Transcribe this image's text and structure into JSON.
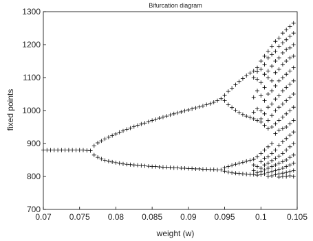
{
  "chart_data": {
    "type": "scatter",
    "title": "Bifurcation diagram",
    "xlabel": "weight (w)",
    "ylabel": "fixed points",
    "xlim": [
      0.07,
      0.105
    ],
    "ylim": [
      700,
      1300
    ],
    "x_ticks": [
      {
        "value": 0.07,
        "label": "0.07"
      },
      {
        "value": 0.075,
        "label": "0.075"
      },
      {
        "value": 0.08,
        "label": "0.08"
      },
      {
        "value": 0.085,
        "label": "0.085"
      },
      {
        "value": 0.09,
        "label": "0.09"
      },
      {
        "value": 0.095,
        "label": "0.095"
      },
      {
        "value": 0.1,
        "label": "0.1"
      },
      {
        "value": 0.105,
        "label": "0.105"
      }
    ],
    "y_ticks": [
      {
        "value": 700,
        "label": "700"
      },
      {
        "value": 800,
        "label": "800"
      },
      {
        "value": 900,
        "label": "900"
      },
      {
        "value": 1000,
        "label": "1000"
      },
      {
        "value": 1100,
        "label": "1100"
      },
      {
        "value": 1200,
        "label": "1200"
      },
      {
        "value": 1300,
        "label": "1300"
      }
    ],
    "marker": "plus",
    "grid": false,
    "colors": {
      "marker": "#000000",
      "axis": "#000000",
      "background": "#ffffff"
    },
    "points": [
      [
        0.07,
        880
      ],
      [
        0.0705,
        880
      ],
      [
        0.071,
        880
      ],
      [
        0.0715,
        880
      ],
      [
        0.072,
        880
      ],
      [
        0.0725,
        880
      ],
      [
        0.073,
        880
      ],
      [
        0.0735,
        880
      ],
      [
        0.074,
        880
      ],
      [
        0.0745,
        880
      ],
      [
        0.075,
        880
      ],
      [
        0.0755,
        880
      ],
      [
        0.076,
        879
      ],
      [
        0.0765,
        878
      ],
      [
        0.077,
        893
      ],
      [
        0.0775,
        902
      ],
      [
        0.078,
        908
      ],
      [
        0.0785,
        914
      ],
      [
        0.079,
        919
      ],
      [
        0.0795,
        924
      ],
      [
        0.08,
        929
      ],
      [
        0.0805,
        934
      ],
      [
        0.081,
        938
      ],
      [
        0.0815,
        943
      ],
      [
        0.082,
        947
      ],
      [
        0.0825,
        951
      ],
      [
        0.083,
        955
      ],
      [
        0.0835,
        959
      ],
      [
        0.084,
        962
      ],
      [
        0.0845,
        966
      ],
      [
        0.085,
        970
      ],
      [
        0.0855,
        973
      ],
      [
        0.086,
        977
      ],
      [
        0.0865,
        980
      ],
      [
        0.087,
        983
      ],
      [
        0.0875,
        987
      ],
      [
        0.088,
        990
      ],
      [
        0.0885,
        993
      ],
      [
        0.089,
        996
      ],
      [
        0.0895,
        999
      ],
      [
        0.09,
        1002
      ],
      [
        0.0905,
        1005
      ],
      [
        0.091,
        1008
      ],
      [
        0.0915,
        1011
      ],
      [
        0.092,
        1014
      ],
      [
        0.0925,
        1018
      ],
      [
        0.093,
        1021
      ],
      [
        0.0935,
        1025
      ],
      [
        0.094,
        1030
      ],
      [
        0.0945,
        1036
      ],
      [
        0.077,
        865
      ],
      [
        0.0775,
        858
      ],
      [
        0.078,
        853
      ],
      [
        0.0785,
        849
      ],
      [
        0.079,
        846
      ],
      [
        0.0795,
        844
      ],
      [
        0.08,
        842
      ],
      [
        0.0805,
        840
      ],
      [
        0.081,
        838
      ],
      [
        0.0815,
        837
      ],
      [
        0.082,
        836
      ],
      [
        0.0825,
        835
      ],
      [
        0.083,
        834
      ],
      [
        0.0835,
        833
      ],
      [
        0.084,
        832
      ],
      [
        0.0845,
        831
      ],
      [
        0.085,
        830
      ],
      [
        0.0855,
        830
      ],
      [
        0.086,
        829
      ],
      [
        0.0865,
        828
      ],
      [
        0.087,
        828
      ],
      [
        0.0875,
        827
      ],
      [
        0.088,
        826
      ],
      [
        0.0885,
        826
      ],
      [
        0.089,
        825
      ],
      [
        0.0895,
        825
      ],
      [
        0.09,
        824
      ],
      [
        0.0905,
        824
      ],
      [
        0.091,
        823
      ],
      [
        0.0915,
        823
      ],
      [
        0.092,
        822
      ],
      [
        0.0925,
        822
      ],
      [
        0.093,
        821
      ],
      [
        0.0935,
        821
      ],
      [
        0.094,
        820
      ],
      [
        0.0945,
        820
      ],
      [
        0.095,
        1046
      ],
      [
        0.0955,
        1058
      ],
      [
        0.096,
        1068
      ],
      [
        0.0965,
        1078
      ],
      [
        0.097,
        1088
      ],
      [
        0.0975,
        1097
      ],
      [
        0.098,
        1106
      ],
      [
        0.0985,
        1114
      ],
      [
        0.099,
        1120
      ],
      [
        0.0995,
        1118
      ],
      [
        0.095,
        1030
      ],
      [
        0.0955,
        1018
      ],
      [
        0.096,
        1009
      ],
      [
        0.0965,
        1001
      ],
      [
        0.097,
        994
      ],
      [
        0.0975,
        988
      ],
      [
        0.098,
        983
      ],
      [
        0.0985,
        979
      ],
      [
        0.095,
        826
      ],
      [
        0.0955,
        830
      ],
      [
        0.096,
        834
      ],
      [
        0.0965,
        837
      ],
      [
        0.097,
        840
      ],
      [
        0.0975,
        843
      ],
      [
        0.098,
        846
      ],
      [
        0.0985,
        849
      ],
      [
        0.099,
        852
      ],
      [
        0.095,
        816
      ],
      [
        0.0955,
        813
      ],
      [
        0.096,
        811
      ],
      [
        0.0965,
        810
      ],
      [
        0.097,
        809
      ],
      [
        0.0975,
        808
      ],
      [
        0.098,
        807
      ],
      [
        0.0985,
        806
      ],
      [
        0.099,
        1100
      ],
      [
        0.099,
        1040
      ],
      [
        0.099,
        995
      ],
      [
        0.099,
        975
      ],
      [
        0.099,
        835
      ],
      [
        0.099,
        818
      ],
      [
        0.099,
        806
      ],
      [
        0.0995,
        1130
      ],
      [
        0.0995,
        1095
      ],
      [
        0.0995,
        1060
      ],
      [
        0.0995,
        1005
      ],
      [
        0.0995,
        970
      ],
      [
        0.0995,
        860
      ],
      [
        0.0995,
        830
      ],
      [
        0.0995,
        812
      ],
      [
        0.0995,
        804
      ],
      [
        0.1,
        1150
      ],
      [
        0.1,
        1125
      ],
      [
        0.1,
        1085
      ],
      [
        0.1,
        1045
      ],
      [
        0.1,
        1000
      ],
      [
        0.1,
        975
      ],
      [
        0.1,
        965
      ],
      [
        0.1,
        870
      ],
      [
        0.1,
        845
      ],
      [
        0.1,
        825
      ],
      [
        0.1,
        815
      ],
      [
        0.1,
        805
      ],
      [
        0.1005,
        1165
      ],
      [
        0.1005,
        1140
      ],
      [
        0.1005,
        1110
      ],
      [
        0.1005,
        1070
      ],
      [
        0.1005,
        1030
      ],
      [
        0.1005,
        990
      ],
      [
        0.1005,
        955
      ],
      [
        0.1005,
        880
      ],
      [
        0.1005,
        855
      ],
      [
        0.1005,
        835
      ],
      [
        0.1005,
        820
      ],
      [
        0.1005,
        808
      ],
      [
        0.101,
        1180
      ],
      [
        0.101,
        1160
      ],
      [
        0.101,
        1120
      ],
      [
        0.101,
        1100
      ],
      [
        0.101,
        1050
      ],
      [
        0.101,
        1010
      ],
      [
        0.101,
        970
      ],
      [
        0.101,
        945
      ],
      [
        0.101,
        890
      ],
      [
        0.101,
        860
      ],
      [
        0.101,
        840
      ],
      [
        0.101,
        825
      ],
      [
        0.101,
        812
      ],
      [
        0.101,
        800
      ],
      [
        0.1015,
        1195
      ],
      [
        0.1015,
        1170
      ],
      [
        0.1015,
        1135
      ],
      [
        0.1015,
        1090
      ],
      [
        0.1015,
        1060
      ],
      [
        0.1015,
        1020
      ],
      [
        0.1015,
        985
      ],
      [
        0.1015,
        950
      ],
      [
        0.1015,
        900
      ],
      [
        0.1015,
        870
      ],
      [
        0.1015,
        848
      ],
      [
        0.1015,
        830
      ],
      [
        0.1015,
        815
      ],
      [
        0.1015,
        802
      ],
      [
        0.102,
        1210
      ],
      [
        0.102,
        1180
      ],
      [
        0.102,
        1150
      ],
      [
        0.102,
        1115
      ],
      [
        0.102,
        1075
      ],
      [
        0.102,
        1035
      ],
      [
        0.102,
        1000
      ],
      [
        0.102,
        960
      ],
      [
        0.102,
        930
      ],
      [
        0.102,
        880
      ],
      [
        0.102,
        855
      ],
      [
        0.102,
        835
      ],
      [
        0.102,
        818
      ],
      [
        0.102,
        805
      ],
      [
        0.1025,
        1220
      ],
      [
        0.1025,
        1195
      ],
      [
        0.1025,
        1160
      ],
      [
        0.1025,
        1125
      ],
      [
        0.1025,
        1090
      ],
      [
        0.1025,
        1045
      ],
      [
        0.1025,
        1010
      ],
      [
        0.1025,
        970
      ],
      [
        0.1025,
        940
      ],
      [
        0.1025,
        895
      ],
      [
        0.1025,
        862
      ],
      [
        0.1025,
        840
      ],
      [
        0.1025,
        822
      ],
      [
        0.1025,
        808
      ],
      [
        0.1025,
        798
      ],
      [
        0.103,
        1235
      ],
      [
        0.103,
        1205
      ],
      [
        0.103,
        1175
      ],
      [
        0.103,
        1140
      ],
      [
        0.103,
        1100
      ],
      [
        0.103,
        1060
      ],
      [
        0.103,
        1020
      ],
      [
        0.103,
        980
      ],
      [
        0.103,
        945
      ],
      [
        0.103,
        905
      ],
      [
        0.103,
        870
      ],
      [
        0.103,
        845
      ],
      [
        0.103,
        825
      ],
      [
        0.103,
        810
      ],
      [
        0.103,
        800
      ],
      [
        0.1035,
        1245
      ],
      [
        0.1035,
        1215
      ],
      [
        0.1035,
        1185
      ],
      [
        0.1035,
        1150
      ],
      [
        0.1035,
        1110
      ],
      [
        0.1035,
        1070
      ],
      [
        0.1035,
        1030
      ],
      [
        0.1035,
        990
      ],
      [
        0.1035,
        950
      ],
      [
        0.1035,
        915
      ],
      [
        0.1035,
        880
      ],
      [
        0.1035,
        850
      ],
      [
        0.1035,
        830
      ],
      [
        0.1035,
        812
      ],
      [
        0.1035,
        800
      ],
      [
        0.104,
        1255
      ],
      [
        0.104,
        1225
      ],
      [
        0.104,
        1190
      ],
      [
        0.104,
        1160
      ],
      [
        0.104,
        1120
      ],
      [
        0.104,
        1080
      ],
      [
        0.104,
        1040
      ],
      [
        0.104,
        1000
      ],
      [
        0.104,
        960
      ],
      [
        0.104,
        925
      ],
      [
        0.104,
        890
      ],
      [
        0.104,
        858
      ],
      [
        0.104,
        835
      ],
      [
        0.104,
        815
      ],
      [
        0.104,
        802
      ],
      [
        0.1045,
        1265
      ],
      [
        0.1045,
        1235
      ],
      [
        0.1045,
        1200
      ],
      [
        0.1045,
        1165
      ],
      [
        0.1045,
        1130
      ],
      [
        0.1045,
        1090
      ],
      [
        0.1045,
        1050
      ],
      [
        0.1045,
        1010
      ],
      [
        0.1045,
        970
      ],
      [
        0.1045,
        935
      ],
      [
        0.1045,
        900
      ],
      [
        0.1045,
        865
      ],
      [
        0.1045,
        840
      ],
      [
        0.1045,
        818
      ],
      [
        0.1045,
        800
      ]
    ]
  }
}
